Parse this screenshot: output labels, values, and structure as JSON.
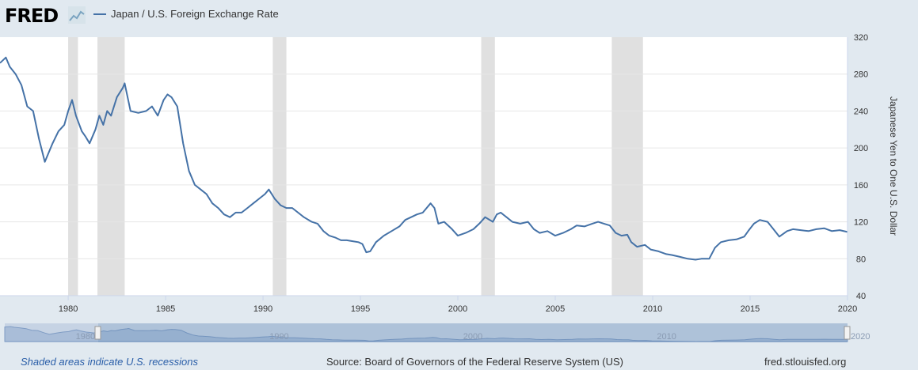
{
  "header": {
    "logo_text": "FRED",
    "logo_icon": "chart-line-icon",
    "legend_label": "Japan / U.S. Foreign Exchange Rate"
  },
  "colors": {
    "series": "#4572a7",
    "recession": "#e0e0e0",
    "plot_bg": "#ffffff",
    "page_bg": "#e1e9f0",
    "navigator": "#a9bdd8"
  },
  "chart_data": {
    "type": "line",
    "title": "Japan / U.S. Foreign Exchange Rate",
    "ylabel": "Japanese Yen to One U.S. Dollar",
    "xlabel": "",
    "ylim": [
      40,
      320
    ],
    "yticks": [
      40,
      80,
      120,
      160,
      200,
      240,
      280,
      320
    ],
    "xlim": [
      1976.5,
      2020.0
    ],
    "xticks": [
      1980,
      1985,
      1990,
      1995,
      2000,
      2005,
      2010,
      2015,
      2020
    ],
    "recessions": [
      [
        1980.0,
        1980.5
      ],
      [
        1981.5,
        1982.9
      ],
      [
        1990.5,
        1991.2
      ],
      [
        2001.2,
        2001.9
      ],
      [
        2007.9,
        2009.5
      ]
    ],
    "series": [
      {
        "name": "Japan / U.S. Foreign Exchange Rate",
        "x": [
          1976.5,
          1976.8,
          1977.0,
          1977.3,
          1977.6,
          1977.9,
          1978.2,
          1978.5,
          1978.8,
          1979.0,
          1979.2,
          1979.5,
          1979.8,
          1980.0,
          1980.2,
          1980.4,
          1980.7,
          1980.9,
          1981.1,
          1981.4,
          1981.6,
          1981.8,
          1982.0,
          1982.2,
          1982.5,
          1982.8,
          1982.9,
          1983.2,
          1983.6,
          1984.0,
          1984.3,
          1984.6,
          1984.9,
          1985.1,
          1985.3,
          1985.6,
          1985.9,
          1986.2,
          1986.5,
          1986.8,
          1987.1,
          1987.4,
          1987.7,
          1988.0,
          1988.3,
          1988.6,
          1988.9,
          1989.2,
          1989.5,
          1989.8,
          1990.1,
          1990.3,
          1990.6,
          1990.9,
          1991.2,
          1991.5,
          1991.8,
          1992.1,
          1992.5,
          1992.8,
          1993.1,
          1993.4,
          1993.7,
          1994.0,
          1994.3,
          1994.6,
          1994.9,
          1995.1,
          1995.3,
          1995.5,
          1995.8,
          1996.2,
          1996.6,
          1997.0,
          1997.3,
          1997.6,
          1997.9,
          1998.2,
          1998.6,
          1998.8,
          1999.0,
          1999.3,
          1999.7,
          2000.0,
          2000.4,
          2000.8,
          2001.1,
          2001.4,
          2001.8,
          2002.0,
          2002.2,
          2002.5,
          2002.8,
          2003.2,
          2003.6,
          2003.9,
          2004.2,
          2004.6,
          2005.0,
          2005.4,
          2005.8,
          2006.1,
          2006.5,
          2006.9,
          2007.2,
          2007.5,
          2007.8,
          2008.1,
          2008.4,
          2008.7,
          2008.9,
          2009.2,
          2009.6,
          2009.9,
          2010.3,
          2010.7,
          2011.0,
          2011.4,
          2011.8,
          2012.2,
          2012.5,
          2012.9,
          2013.2,
          2013.5,
          2013.9,
          2014.3,
          2014.7,
          2014.9,
          2015.2,
          2015.5,
          2015.9,
          2016.2,
          2016.5,
          2016.9,
          2017.2,
          2017.6,
          2018.0,
          2018.4,
          2018.8,
          2019.2,
          2019.6,
          2020.0
        ],
        "values": [
          292,
          298,
          288,
          280,
          268,
          245,
          240,
          210,
          185,
          195,
          205,
          218,
          225,
          240,
          252,
          235,
          218,
          212,
          205,
          220,
          235,
          225,
          240,
          235,
          255,
          265,
          270,
          240,
          238,
          240,
          245,
          235,
          252,
          258,
          255,
          245,
          205,
          175,
          160,
          155,
          150,
          140,
          135,
          128,
          125,
          130,
          130,
          135,
          140,
          145,
          150,
          155,
          145,
          138,
          135,
          135,
          130,
          125,
          120,
          118,
          110,
          105,
          103,
          100,
          100,
          99,
          98,
          96,
          87,
          88,
          98,
          105,
          110,
          115,
          122,
          125,
          128,
          130,
          140,
          135,
          118,
          120,
          112,
          105,
          108,
          112,
          118,
          125,
          120,
          128,
          130,
          125,
          120,
          118,
          120,
          112,
          108,
          110,
          105,
          108,
          112,
          116,
          115,
          118,
          120,
          118,
          116,
          108,
          105,
          106,
          98,
          93,
          95,
          90,
          88,
          85,
          84,
          82,
          80,
          79,
          80,
          80,
          92,
          98,
          100,
          101,
          104,
          110,
          118,
          122,
          120,
          112,
          104,
          110,
          112,
          111,
          110,
          112,
          113,
          110,
          111,
          109
        ]
      }
    ],
    "navigator": {
      "labels": [
        "1980",
        "1990",
        "2000",
        "2010",
        "2020"
      ]
    }
  },
  "footer": {
    "recession_note": "Shaded areas indicate U.S. recessions",
    "source": "Source: Board of Governors of the Federal Reserve System (US)",
    "site": "fred.stlouisfed.org"
  }
}
